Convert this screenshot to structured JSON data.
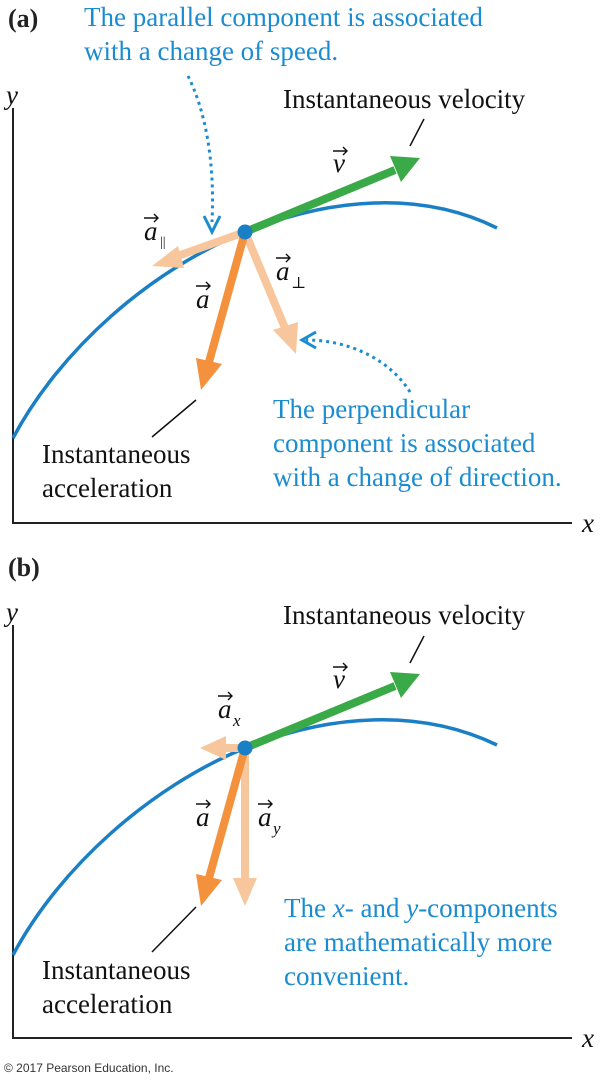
{
  "colors": {
    "curve": "#1a7fc4",
    "velocity": "#3aaa49",
    "acceleration": "#f4913c",
    "component": "#f8c69c",
    "callout_text": "#1a8ccf",
    "callout_arrow": "#1a8ccf",
    "axis": "#222222",
    "point": "#1a7fc4"
  },
  "panel_a": {
    "label": "(a)",
    "y_axis": "y",
    "x_axis": "x",
    "callout_top": [
      "The parallel component is associated",
      "with a change of speed."
    ],
    "velocity_label": "Instantaneous velocity",
    "v_symbol": "v",
    "a_symbol": "a",
    "a_par_symbol": "a",
    "a_par_sub": "||",
    "a_perp_symbol": "a",
    "a_perp_sub": "⊥",
    "accel_label": [
      "Instantaneous",
      "acceleration"
    ],
    "callout_bottom": [
      "The perpendicular",
      "component is associated",
      "with a change of direction."
    ]
  },
  "panel_b": {
    "label": "(b)",
    "y_axis": "y",
    "x_axis": "x",
    "velocity_label": "Instantaneous velocity",
    "v_symbol": "v",
    "a_symbol": "a",
    "ax_symbol": "a",
    "ax_sub": "x",
    "ay_symbol": "a",
    "ay_sub": "y",
    "accel_label": [
      "Instantaneous",
      "acceleration"
    ],
    "callout_prefix": "The ",
    "callout_x": "x",
    "callout_mid": "- and ",
    "callout_y": "y",
    "callout_suffix": "-components",
    "callout_lines": [
      "are mathematically more",
      "convenient."
    ]
  },
  "copyright": "© 2017 Pearson Education, Inc."
}
